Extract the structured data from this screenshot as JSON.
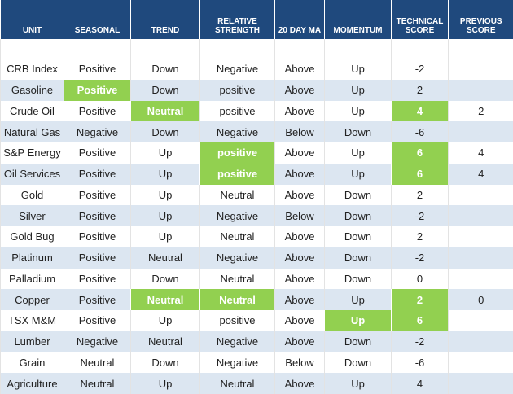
{
  "table": {
    "header": [
      "UNIT",
      "SEASONAL",
      "TREND",
      "RELATIVE STRENGTH",
      "20 DAY MA",
      "MOMENTUM",
      "TECHNICAL SCORE",
      "PREVIOUS SCORE"
    ],
    "rows": [
      [
        "CRB Index",
        "Positive",
        "Down",
        "Negative",
        "Above",
        "Up",
        -2,
        null
      ],
      [
        "Gasoline",
        "Positive",
        "Down",
        "positive",
        "Above",
        "Up",
        2,
        null
      ],
      [
        "Crude Oil",
        "Positive",
        "Neutral",
        "positive",
        "Above",
        "Up",
        4,
        2
      ],
      [
        "Natural Gas",
        "Negative",
        "Down",
        "Negative",
        "Below",
        "Down",
        -6,
        null
      ],
      [
        "S&P Energy",
        "Positive",
        "Up",
        "positive",
        "Above",
        "Up",
        6,
        4
      ],
      [
        "Oil Services",
        "Positive",
        "Up",
        "positive",
        "Above",
        "Up",
        6,
        4
      ],
      [
        "Gold",
        "Positive",
        "Up",
        "Neutral",
        "Above",
        "Down",
        2,
        null
      ],
      [
        "Silver",
        "Positive",
        "Up",
        "Negative",
        "Below",
        "Down",
        -2,
        null
      ],
      [
        "Gold Bug",
        "Positive",
        "Up",
        "Neutral",
        "Above",
        "Down",
        2,
        null
      ],
      [
        "Platinum",
        "Positive",
        "Neutral",
        "Negative",
        "Above",
        "Down",
        -2,
        null
      ],
      [
        "Palladium",
        "Positive",
        "Down",
        "Neutral",
        "Above",
        "Down",
        0,
        null
      ],
      [
        "Copper",
        "Positive",
        "Neutral",
        "Neutral",
        "Above",
        "Up",
        2,
        0
      ],
      [
        "TSX M&M",
        "Positive",
        "Up",
        "positive",
        "Above",
        "Up",
        6,
        null
      ],
      [
        "Lumber",
        "Negative",
        "Neutral",
        "Negative",
        "Above",
        "Down",
        -2,
        null
      ],
      [
        "Grain",
        "Neutral",
        "Down",
        "Negative",
        "Below",
        "Down",
        -6,
        null
      ],
      [
        "Agriculture",
        "Neutral",
        "Up",
        "Neutral",
        "Above",
        "Up",
        4,
        null
      ]
    ],
    "highlights": [
      [
        1,
        1
      ],
      [
        2,
        2
      ],
      [
        2,
        6
      ],
      [
        4,
        3
      ],
      [
        4,
        6
      ],
      [
        5,
        3
      ],
      [
        5,
        6
      ],
      [
        11,
        2
      ],
      [
        11,
        3
      ],
      [
        11,
        6
      ],
      [
        12,
        5
      ],
      [
        12,
        6
      ]
    ],
    "header_color": "#1f497d",
    "stripe_color": "#dce6f1",
    "highlight_color": "#92d050"
  }
}
